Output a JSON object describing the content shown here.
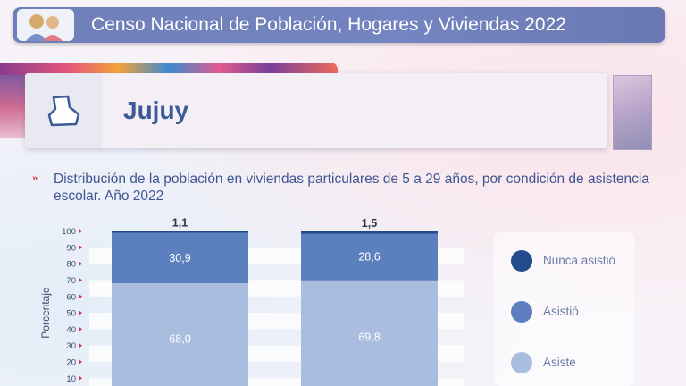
{
  "header": {
    "title": "Censo Nacional de Población, Hogares y Viviendas 2022",
    "logo_icon": "people-logo-icon"
  },
  "province": {
    "name": "Jujuy",
    "icon": "province-map-icon"
  },
  "chart_data": {
    "type": "bar",
    "stacked": true,
    "title": "Distribución de la población en viviendas particulares de 5 a 29 años, por condición de asistencia escolar. Año 2022",
    "ylabel": "Porcentaje",
    "ylim": [
      0,
      100
    ],
    "yticks": [
      "10",
      "20",
      "30",
      "40",
      "50",
      "60",
      "70",
      "80",
      "90",
      "100"
    ],
    "categories": [
      "",
      ""
    ],
    "series": [
      {
        "name": "Asiste",
        "color": "#a9bedf",
        "values": [
          68.0,
          69.8
        ],
        "labels": [
          "68,0",
          "69,8"
        ]
      },
      {
        "name": "Asistió",
        "color": "#5c7fbe",
        "values": [
          30.9,
          28.6
        ],
        "labels": [
          "30,9",
          "28,6"
        ]
      },
      {
        "name": "Nunca asistió",
        "color": "#234a8c",
        "values": [
          1.1,
          1.5
        ],
        "labels": [
          "1,1",
          "1,5"
        ]
      }
    ],
    "legend_position": "right",
    "grid": true
  }
}
